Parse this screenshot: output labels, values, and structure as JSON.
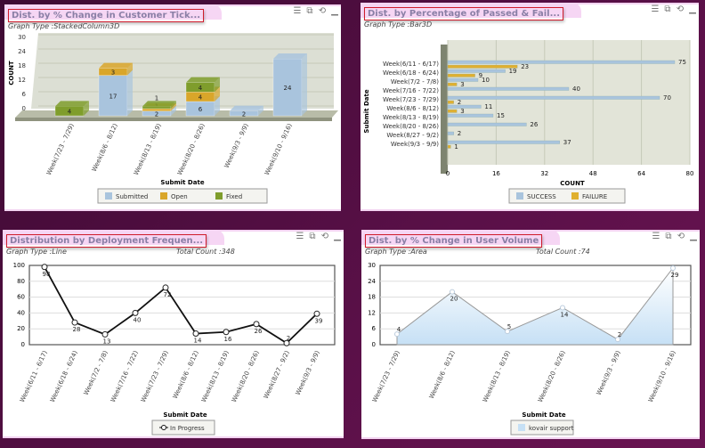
{
  "panels": [
    {
      "title": "Dist. by % Change in Customer Tick...",
      "graph_type": "Graph Type :StackedColumn3D"
    },
    {
      "title": "Dist. by Percentage of Passed & Fail...",
      "graph_type": "Graph Type :Bar3D"
    },
    {
      "title": "Distribution by Deployment Frequen...",
      "graph_type": "Graph Type :Line",
      "total": "Total Count :348"
    },
    {
      "title": "Dist. by % Change in User Volume",
      "graph_type": "Graph Type :Area",
      "total": "Total Count :74"
    }
  ],
  "panel_icons": [
    "menu-icon",
    "export-icon",
    "refresh-icon",
    "minimize-icon"
  ],
  "chart_data": [
    {
      "type": "bar",
      "stacked": true,
      "xlabel": "Submit Date",
      "ylabel": "COUNT",
      "ylim": [
        0,
        30
      ],
      "yticks": [
        0,
        6,
        12,
        18,
        24,
        30
      ],
      "categories": [
        "Week(7/23 - 7/29)",
        "Week(8/6 - 8/12)",
        "Week(8/13 - 8/19)",
        "Week(8/20 - 8/26)",
        "Week(9/3 - 9/9)",
        "Week(9/10 - 9/16)"
      ],
      "series": [
        {
          "name": "Submitted",
          "color": "#a9c4dd",
          "values": [
            0,
            17,
            2,
            6,
            2,
            24
          ]
        },
        {
          "name": "Open",
          "color": "#d9a62a",
          "values": [
            0,
            3,
            1,
            4,
            0,
            0
          ]
        },
        {
          "name": "Fixed",
          "color": "#7f9d2c",
          "values": [
            4,
            0,
            1,
            4,
            0,
            0
          ]
        }
      ],
      "legend": "bottom"
    },
    {
      "type": "bar",
      "orientation": "horizontal",
      "xlabel": "COUNT",
      "ylabel": "Submit Date",
      "xlim": [
        0,
        80
      ],
      "xticks": [
        0,
        16,
        32,
        48,
        64,
        80
      ],
      "categories": [
        "Week(6/11 - 6/17)",
        "Week(6/18 - 6/24)",
        "Week(7/2 - 7/8)",
        "Week(7/16 - 7/22)",
        "Week(7/23 - 7/29)",
        "Week(8/6 - 8/12)",
        "Week(8/13 - 8/19)",
        "Week(8/20 - 8/26)",
        "Week(8/27 - 9/2)",
        "Week(9/3 - 9/9)"
      ],
      "series": [
        {
          "name": "SUCCESS",
          "color": "#a9c4dd",
          "values": [
            75,
            19,
            10,
            40,
            70,
            11,
            15,
            26,
            2,
            37
          ]
        },
        {
          "name": "FAILURE",
          "color": "#e0b030",
          "values": [
            23,
            9,
            3,
            null,
            2,
            3,
            null,
            null,
            null,
            1
          ]
        }
      ],
      "legend": "bottom"
    },
    {
      "type": "line",
      "xlabel": "Submit Date",
      "ylim": [
        0,
        100
      ],
      "yticks": [
        0,
        20,
        40,
        60,
        80,
        100
      ],
      "categories": [
        "Week(6/11 - 6/17)",
        "Week(6/18 - 6/24)",
        "Week(7/2 - 7/8)",
        "Week(7/16 - 7/22)",
        "Week(7/23 - 7/29)",
        "Week(8/6 - 8/12)",
        "Week(8/13 - 8/19)",
        "Week(8/20 - 8/26)",
        "Week(8/27 - 9/2)",
        "Week(9/3 - 9/9)"
      ],
      "series": [
        {
          "name": "In Progress",
          "color": "#111111",
          "values": [
            98,
            28,
            13,
            40,
            72,
            14,
            16,
            26,
            2,
            39
          ]
        }
      ],
      "legend": "bottom"
    },
    {
      "type": "area",
      "xlabel": "Submit Date",
      "ylim": [
        0,
        30
      ],
      "yticks": [
        0,
        6,
        12,
        18,
        24,
        30
      ],
      "categories": [
        "Week(7/23 - 7/29)",
        "Week(8/6 - 8/12)",
        "Week(8/13 - 8/19)",
        "Week(8/20 - 8/26)",
        "Week(9/3 - 9/9)",
        "Week(9/10 - 9/16)"
      ],
      "series": [
        {
          "name": "kovair support",
          "color": "#c6e0f5",
          "values": [
            4,
            20,
            5,
            14,
            2,
            29
          ]
        }
      ],
      "legend": "bottom"
    }
  ]
}
